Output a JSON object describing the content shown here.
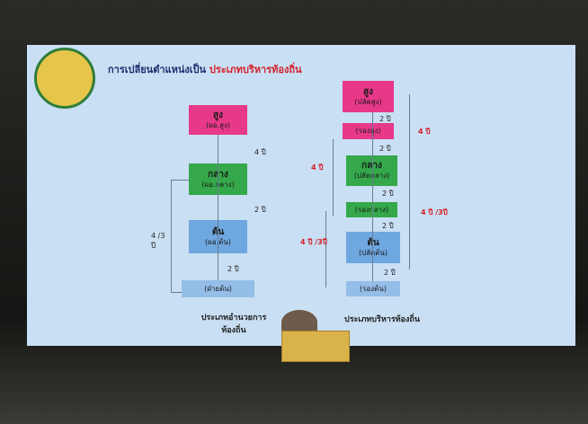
{
  "slide": {
    "title": "การเปลี่ยนตำแหน่งเป็น",
    "title_highlight": "ประเภทบริหารท้องถิ่น",
    "left_boxes": [
      {
        "main": "สูง",
        "sub": "(ผอ.สูง)"
      },
      {
        "main": "กลาง",
        "sub": "(ผอ.กลาง)"
      },
      {
        "main": "ต้น",
        "sub": "(ผอ.ต้น)"
      },
      {
        "main": "",
        "sub": "(ฝ่ายต้น)"
      }
    ],
    "left_steps": [
      "4 ปี",
      "2 ปี",
      "2 ปี"
    ],
    "left_span": "4 /3 ปี",
    "left_caption": [
      "ประเภทอำนวยการ",
      "ท้องถิ่น"
    ],
    "right_boxes": [
      {
        "main": "สูง",
        "sub": "(ปลัดสูง)"
      },
      {
        "main": "",
        "sub": "(รองสูง)"
      },
      {
        "main": "กลาง",
        "sub": "(ปลัดกลาง)"
      },
      {
        "main": "",
        "sub": "(รองกลาง)"
      },
      {
        "main": "ต้น",
        "sub": "(ปลัดต้น)"
      },
      {
        "main": "",
        "sub": "(รองต้น)"
      }
    ],
    "right_steps": [
      "2 ปี",
      "2 ปี",
      "2 ปี",
      "2 ปี",
      "2 ปี"
    ],
    "right_spans": [
      "4 ปี",
      "4 ปี",
      "4 ปี /3ปี",
      "4 ปี /3ปี"
    ],
    "right_caption": "ประเภทบริหารท้องถิ่น"
  }
}
